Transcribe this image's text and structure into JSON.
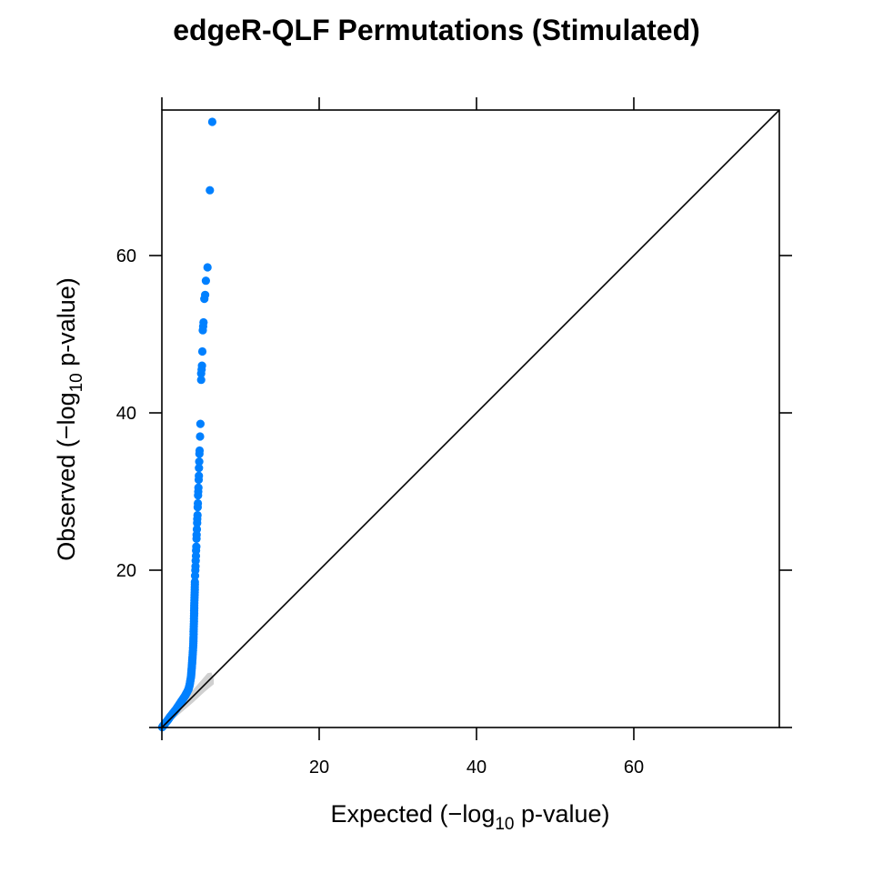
{
  "chart_data": {
    "type": "scatter",
    "title": "edgeR-QLF Permutations (Stimulated)",
    "xlabel": {
      "pre": "Expected (",
      "minus": "−",
      "log": "log",
      "base": "10",
      "post": " p-value)"
    },
    "ylabel": {
      "pre": "Observed (",
      "minus": "−",
      "log": "log",
      "base": "10",
      "post": " p-value)"
    },
    "xlim": [
      0,
      78.5
    ],
    "ylim": [
      0,
      78.5
    ],
    "xticks": [
      20,
      40,
      60
    ],
    "yticks": [
      20,
      40,
      60
    ],
    "xtick_labels": [
      "20",
      "40",
      "60"
    ],
    "ytick_labels": [
      "20",
      "40",
      "60"
    ],
    "reference_line": "y = x",
    "point_color": "#0080ff",
    "band_color": "#c8c8c8",
    "outlier_points": [
      [
        6.4,
        77.0
      ],
      [
        6.1,
        68.3
      ],
      [
        5.8,
        58.5
      ],
      [
        5.6,
        56.8
      ],
      [
        5.5,
        55.0
      ],
      [
        5.4,
        54.5
      ],
      [
        5.3,
        51.5
      ],
      [
        5.25,
        51.0
      ],
      [
        5.2,
        50.5
      ],
      [
        5.15,
        47.8
      ],
      [
        5.1,
        46.0
      ],
      [
        5.05,
        45.5
      ],
      [
        5.0,
        45.0
      ],
      [
        5.0,
        44.2
      ],
      [
        4.9,
        38.6
      ],
      [
        4.85,
        37.0
      ],
      [
        4.8,
        35.2
      ],
      [
        4.78,
        34.8
      ],
      [
        4.75,
        33.8
      ],
      [
        4.72,
        33.0
      ],
      [
        4.7,
        32.0
      ],
      [
        4.68,
        31.5
      ],
      [
        4.65,
        30.5
      ],
      [
        4.62,
        30.0
      ],
      [
        4.6,
        29.5
      ],
      [
        4.58,
        28.5
      ],
      [
        4.55,
        28.0
      ],
      [
        4.53,
        27.0
      ],
      [
        4.5,
        26.5
      ],
      [
        4.48,
        26.0
      ],
      [
        4.45,
        25.2
      ],
      [
        4.42,
        24.5
      ],
      [
        4.4,
        24.0
      ],
      [
        4.38,
        23.0
      ],
      [
        4.35,
        22.5
      ],
      [
        4.33,
        21.8
      ],
      [
        4.3,
        21.2
      ],
      [
        4.28,
        20.5
      ],
      [
        4.25,
        20.0
      ],
      [
        4.22,
        19.3
      ]
    ],
    "curve_points": [
      [
        0.05,
        0.05
      ],
      [
        0.2,
        0.25
      ],
      [
        0.4,
        0.5
      ],
      [
        0.6,
        0.75
      ],
      [
        0.8,
        1.0
      ],
      [
        1.0,
        1.3
      ],
      [
        1.2,
        1.55
      ],
      [
        1.4,
        1.8
      ],
      [
        1.6,
        2.05
      ],
      [
        1.8,
        2.3
      ],
      [
        2.0,
        2.6
      ],
      [
        2.2,
        2.9
      ],
      [
        2.4,
        3.2
      ],
      [
        2.6,
        3.5
      ],
      [
        2.8,
        3.8
      ],
      [
        3.0,
        4.1
      ],
      [
        3.2,
        4.5
      ],
      [
        3.4,
        4.9
      ],
      [
        3.5,
        5.3
      ],
      [
        3.6,
        5.8
      ],
      [
        3.7,
        6.4
      ],
      [
        3.75,
        7.0
      ],
      [
        3.8,
        7.6
      ],
      [
        3.85,
        8.3
      ],
      [
        3.9,
        9.0
      ],
      [
        3.95,
        9.8
      ],
      [
        4.0,
        10.7
      ],
      [
        4.02,
        11.5
      ],
      [
        4.05,
        12.5
      ],
      [
        4.08,
        13.5
      ],
      [
        4.1,
        14.5
      ],
      [
        4.12,
        15.5
      ],
      [
        4.15,
        16.5
      ],
      [
        4.18,
        17.5
      ],
      [
        4.2,
        18.5
      ]
    ],
    "confidence_band": [
      [
        0,
        0
      ],
      [
        2.0,
        1.5
      ],
      [
        4.0,
        3.2
      ],
      [
        5.5,
        4.6
      ],
      [
        6.6,
        5.5
      ],
      [
        6.6,
        6.2
      ],
      [
        6.3,
        7.0
      ],
      [
        5.8,
        6.9
      ],
      [
        4.5,
        5.4
      ],
      [
        2.5,
        3.1
      ],
      [
        0,
        0
      ]
    ]
  }
}
